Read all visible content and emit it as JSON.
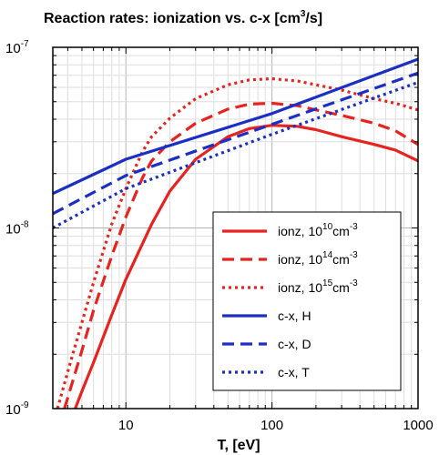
{
  "chart_data": {
    "type": "line",
    "title": "Reaction rates: ionization vs. c-x [cm",
    "title_sup": "3",
    "title_tail": "/s]",
    "xlabel": "T, [eV]",
    "ylabel": "",
    "x_scale": "log",
    "y_scale": "log",
    "xlim": [
      3.16,
      1000
    ],
    "ylim": [
      1e-09,
      1e-07
    ],
    "grid": true,
    "legend_position": "bottom-right",
    "x_ticks": [
      {
        "value": 10,
        "label": "10"
      },
      {
        "value": 100,
        "label": "100"
      },
      {
        "value": 1000,
        "label": "1000"
      }
    ],
    "y_ticks": [
      {
        "value": 1e-09,
        "base": "10",
        "exp": "-9"
      },
      {
        "value": 1e-08,
        "base": "10",
        "exp": "-8"
      },
      {
        "value": 1e-07,
        "base": "10",
        "exp": "-7"
      }
    ],
    "series": [
      {
        "name": "ionz, 10",
        "name_sup": "10",
        "name_tail": "cm",
        "name_tail_sup": "-3",
        "color": "#e8231f",
        "dash": "solid",
        "x": [
          4.5,
          5,
          6,
          8,
          10,
          15,
          20,
          30,
          50,
          70,
          100,
          150,
          200,
          300,
          500,
          700,
          1000
        ],
        "y": [
          1e-09,
          1.25e-09,
          1.8e-09,
          3.3e-09,
          5.2e-09,
          1.05e-08,
          1.6e-08,
          2.4e-08,
          3.2e-08,
          3.55e-08,
          3.7e-08,
          3.65e-08,
          3.5e-08,
          3.2e-08,
          2.9e-08,
          2.7e-08,
          2.35e-08
        ]
      },
      {
        "name": "ionz, 10",
        "name_sup": "14",
        "name_tail": "cm",
        "name_tail_sup": "-3",
        "color": "#e8231f",
        "dash": "dashed",
        "x": [
          3.8,
          4,
          5,
          6,
          8,
          10,
          13,
          15,
          20,
          30,
          50,
          70,
          100,
          150,
          200,
          300,
          500,
          700,
          1000
        ],
        "y": [
          1e-09,
          1.15e-09,
          2.1e-09,
          3.5e-09,
          7e-09,
          1.15e-08,
          1.9e-08,
          2.35e-08,
          3e-08,
          3.8e-08,
          4.55e-08,
          4.85e-08,
          4.9e-08,
          4.75e-08,
          4.5e-08,
          4.2e-08,
          3.8e-08,
          3.45e-08,
          2.9e-08
        ]
      },
      {
        "name": "ionz, 10",
        "name_sup": "15",
        "name_tail": "cm",
        "name_tail_sup": "-3",
        "color": "#e8231f",
        "dash": "dotted",
        "x": [
          3.4,
          4,
          5,
          6,
          8,
          10,
          13,
          15,
          20,
          30,
          50,
          70,
          100,
          150,
          200,
          300,
          500,
          700,
          1000
        ],
        "y": [
          1e-09,
          1.6e-09,
          3e-09,
          5e-09,
          1.05e-08,
          1.65e-08,
          2.65e-08,
          3.2e-08,
          4.05e-08,
          5.2e-08,
          6.2e-08,
          6.6e-08,
          6.7e-08,
          6.5e-08,
          6.2e-08,
          5.8e-08,
          5.2e-08,
          4.9e-08,
          4.5e-08
        ]
      },
      {
        "name": "c-x,   H",
        "color": "#1b2fc4",
        "dash": "solid",
        "x": [
          3.16,
          10,
          100,
          1000
        ],
        "y": [
          1.55e-08,
          2.4e-08,
          4.3e-08,
          8.6e-08
        ]
      },
      {
        "name": "c-x,   D",
        "color": "#1b2fc4",
        "dash": "dashed",
        "x": [
          3.16,
          10,
          100,
          1000
        ],
        "y": [
          1.2e-08,
          1.95e-08,
          3.75e-08,
          7.2e-08
        ]
      },
      {
        "name": "c-x,   T",
        "color": "#1b2fc4",
        "dash": "dotted",
        "x": [
          3.16,
          10,
          100,
          1000
        ],
        "y": [
          1e-08,
          1.65e-08,
          3.3e-08,
          6.4e-08
        ]
      }
    ]
  }
}
